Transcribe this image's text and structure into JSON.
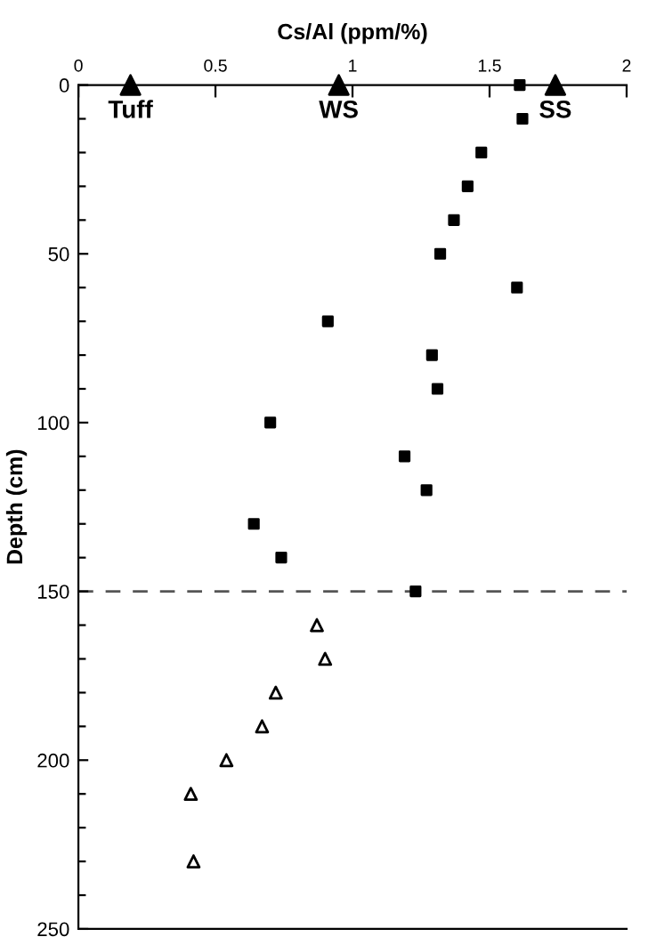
{
  "chart_data": {
    "type": "scatter",
    "xlabel": "Cs/Al (ppm/%)",
    "ylabel": "Depth (cm)",
    "xlim": [
      0,
      2
    ],
    "xticks": [
      0,
      0.5,
      1,
      1.5,
      2
    ],
    "ylim": [
      250,
      0
    ],
    "yticks": [
      0,
      {
        "value": 10,
        "label": null
      },
      {
        "value": 20,
        "label": null
      },
      {
        "value": 30,
        "label": null
      },
      {
        "value": 40,
        "label": null
      },
      50,
      {
        "value": 60,
        "label": null
      },
      {
        "value": 70,
        "label": null
      },
      {
        "value": 80,
        "label": null
      },
      {
        "value": 90,
        "label": null
      },
      100,
      {
        "value": 110,
        "label": null
      },
      {
        "value": 120,
        "label": null
      },
      {
        "value": 130,
        "label": null
      },
      {
        "value": 140,
        "label": null
      },
      150,
      {
        "value": 160,
        "label": null
      },
      {
        "value": 170,
        "label": null
      },
      {
        "value": 180,
        "label": null
      },
      {
        "value": 190,
        "label": null
      },
      200,
      {
        "value": 210,
        "label": null
      },
      {
        "value": 220,
        "label": null
      },
      {
        "value": 230,
        "label": null
      },
      {
        "value": 240,
        "label": null
      },
      250
    ],
    "grid": false,
    "legend": false,
    "series": [
      {
        "color": "#000000",
        "marker": "square",
        "x": [
          1.61,
          1.62,
          1.47,
          1.42,
          1.37,
          1.32,
          1.6,
          0.91,
          1.29,
          1.31,
          0.7,
          1.19,
          1.27,
          0.64,
          0.74,
          1.23
        ],
        "values": [
          0,
          10,
          20,
          30,
          40,
          50,
          60,
          70,
          80,
          90,
          100,
          110,
          120,
          130,
          140,
          150
        ]
      },
      {
        "color": "#000000",
        "marker": "triangle",
        "x": [
          0.87,
          0.9,
          0.72,
          0.67,
          0.54,
          0.41,
          0.42
        ],
        "values": [
          160,
          170,
          180,
          190,
          200,
          210,
          230
        ]
      },
      {
        "color": "#000000",
        "marker": "triangle",
        "x": [
          0.19,
          0.95,
          1.74
        ],
        "values": [
          0,
          0,
          0
        ]
      }
    ],
    "annotations": [
      {
        "text": "Tuff",
        "x": 0.19,
        "y": 0
      },
      {
        "text": "WS",
        "x": 0.95,
        "y": 0
      },
      {
        "text": "SS",
        "x": 1.74,
        "y": 0
      }
    ],
    "ref_lines": [
      {
        "axis": "y",
        "value": 150,
        "color": "#555555",
        "line_style": "dashed"
      }
    ]
  }
}
